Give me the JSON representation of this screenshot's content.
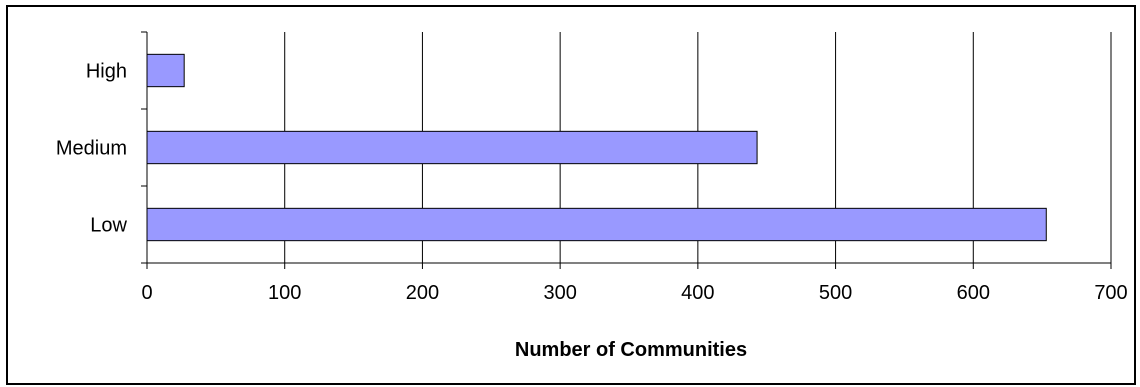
{
  "chart_data": {
    "type": "bar",
    "orientation": "horizontal",
    "categories": [
      "High",
      "Medium",
      "Low"
    ],
    "values": [
      27,
      443,
      653
    ],
    "title": "",
    "xlabel": "Number of Communities",
    "ylabel": "",
    "xlim": [
      0,
      700
    ],
    "xticks": [
      0,
      100,
      200,
      300,
      400,
      500,
      600,
      700
    ],
    "grid": "vertical",
    "legend": "none",
    "bar_color": "#9999ff",
    "bar_edge_color": "#000000"
  }
}
